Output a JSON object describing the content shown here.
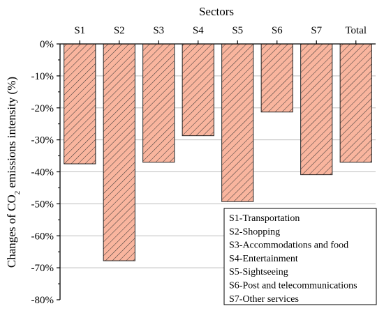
{
  "chart_data": {
    "type": "bar",
    "xlabel": "Sectors",
    "ylabel_prefix": "Changes of CO",
    "ylabel_subscript": "2",
    "ylabel_suffix": " emissions intensity (%)",
    "categories": [
      "S1",
      "S2",
      "S3",
      "S4",
      "S5",
      "S6",
      "S7",
      "Total"
    ],
    "values": [
      -37.5,
      -67.8,
      -37.0,
      -28.7,
      -49.3,
      -21.3,
      -40.9,
      -37.0
    ],
    "ylim": [
      -80,
      0
    ],
    "yticks": [
      0,
      -10,
      -20,
      -30,
      -40,
      -50,
      -60,
      -70,
      -80
    ],
    "ytick_labels": [
      "0%",
      "-10%",
      "-20%",
      "-30%",
      "-40%",
      "-50%",
      "-60%",
      "-70%",
      "-80%"
    ],
    "grid": "horizontal",
    "x_axis_position": "top",
    "legend_position": "bottom-right",
    "legend": [
      "S1-Transportation",
      "S2-Shopping",
      "S3-Accommodations and food",
      "S4-Entertainment",
      "S5-Sightseeing",
      "S6-Post and telecommunications",
      "S7-Other services"
    ],
    "colors": {
      "bar_fill": "#f9b59e",
      "hatch": "#333333",
      "bar_edge": "#222222",
      "grid": "#bdbdbd"
    }
  }
}
